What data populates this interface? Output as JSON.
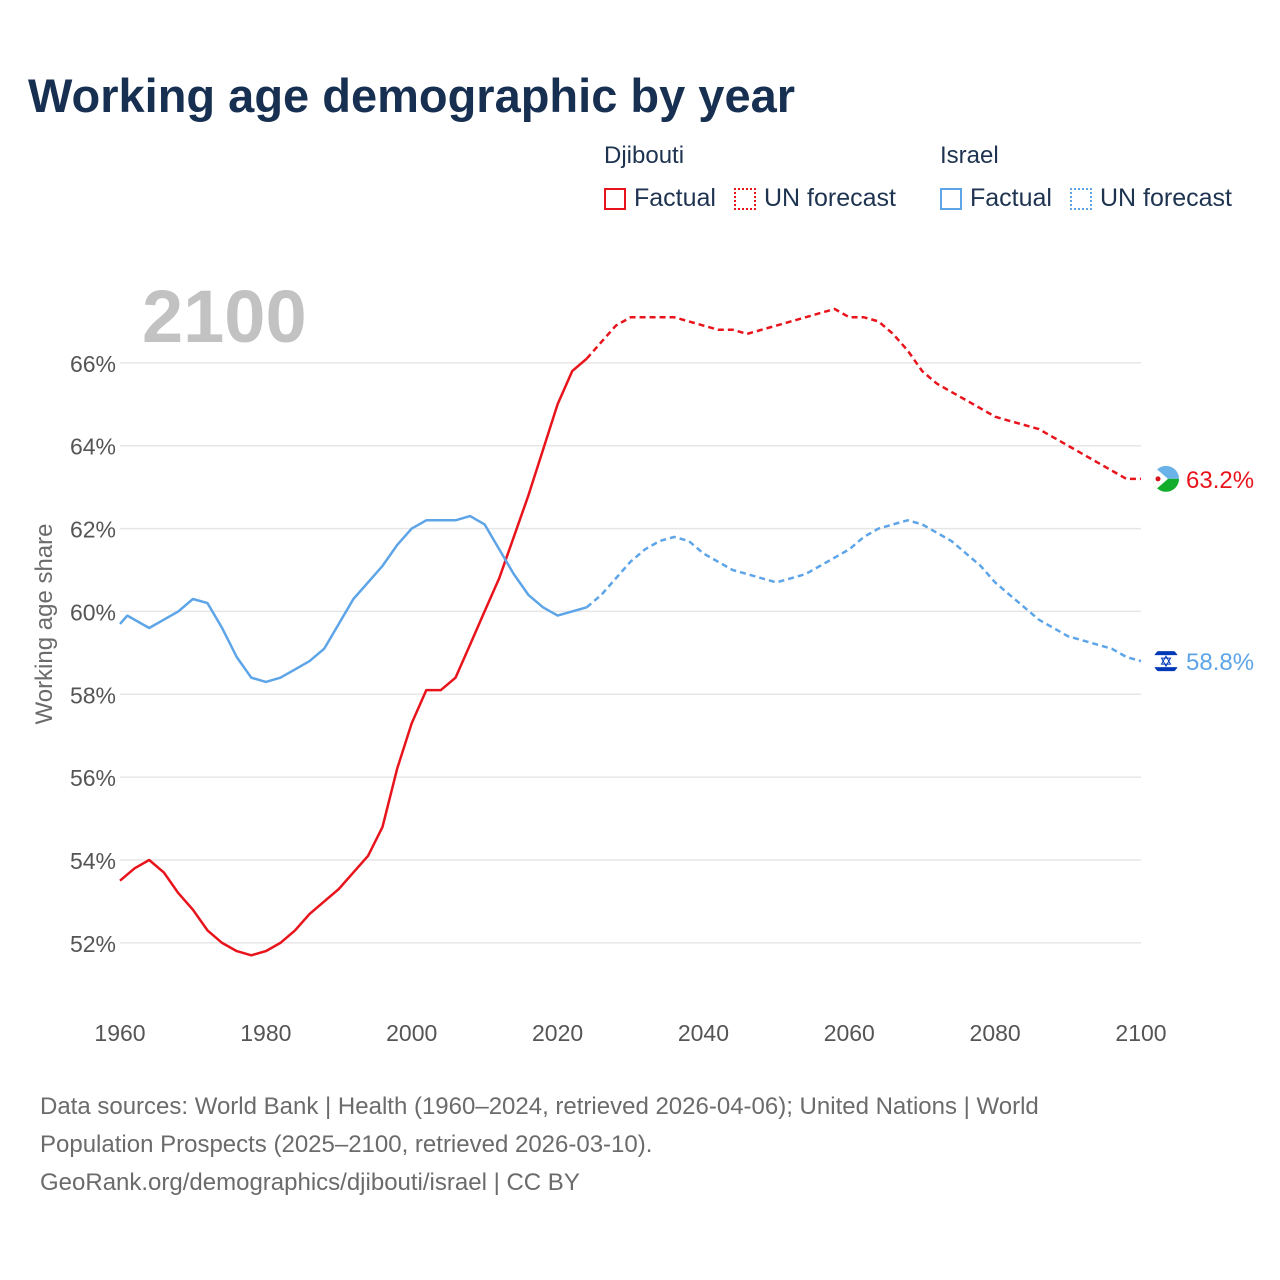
{
  "title": "Working age demographic by year",
  "legend": {
    "groups": [
      {
        "name": "Djibouti",
        "factual": "Factual",
        "forecast": "UN forecast",
        "color": "#e8141c"
      },
      {
        "name": "Israel",
        "factual": "Factual",
        "forecast": "UN forecast",
        "color": "#5ea5e8"
      }
    ]
  },
  "year_watermark": "2100",
  "footer": {
    "line1": "Data sources: World Bank | Health (1960–2024, retrieved 2026-04-06); United Nations | World",
    "line2": "Population Prospects (2025–2100, retrieved 2026-03-10).",
    "line3": "GeoRank.org/demographics/djibouti/israel | CC BY"
  },
  "chart_data": {
    "type": "line",
    "title": "Working age demographic by year",
    "xlabel": "",
    "ylabel": "Working age share",
    "xlim": [
      1960,
      2100
    ],
    "ylim": [
      50.5,
      68
    ],
    "x_ticks": [
      1960,
      1980,
      2000,
      2020,
      2040,
      2060,
      2080,
      2100
    ],
    "x_tick_labels": [
      "1960",
      "1980",
      "2000",
      "2020",
      "2040",
      "2060",
      "2080",
      "2100"
    ],
    "y_ticks": [
      52,
      54,
      56,
      58,
      60,
      62,
      64,
      66
    ],
    "y_tick_labels": [
      "52%",
      "54%",
      "56%",
      "58%",
      "60%",
      "62%",
      "64%",
      "66%"
    ],
    "factual_end_year": 2024,
    "series": [
      {
        "name": "Djibouti",
        "color": "#e8141c",
        "end_label": "63.2%",
        "end_icon": "djibouti-flag-icon",
        "x": [
          1960,
          1962,
          1964,
          1966,
          1968,
          1970,
          1972,
          1974,
          1976,
          1978,
          1980,
          1982,
          1984,
          1986,
          1988,
          1990,
          1992,
          1994,
          1996,
          1998,
          2000,
          2002,
          2004,
          2006,
          2008,
          2010,
          2012,
          2014,
          2016,
          2018,
          2020,
          2022,
          2024,
          2026,
          2028,
          2030,
          2032,
          2034,
          2036,
          2038,
          2040,
          2042,
          2044,
          2046,
          2048,
          2050,
          2052,
          2054,
          2056,
          2058,
          2060,
          2062,
          2064,
          2066,
          2068,
          2070,
          2072,
          2074,
          2076,
          2078,
          2080,
          2082,
          2084,
          2086,
          2088,
          2090,
          2092,
          2094,
          2096,
          2098,
          2100
        ],
        "values": [
          53.5,
          53.8,
          54.0,
          53.7,
          53.2,
          52.8,
          52.3,
          52.0,
          51.8,
          51.7,
          51.8,
          52.0,
          52.3,
          52.7,
          53.0,
          53.3,
          53.7,
          54.1,
          54.8,
          56.2,
          57.3,
          58.1,
          58.1,
          58.4,
          59.2,
          60.0,
          60.8,
          61.8,
          62.8,
          63.9,
          65.0,
          65.8,
          66.1,
          66.5,
          66.9,
          67.1,
          67.1,
          67.1,
          67.1,
          67.0,
          66.9,
          66.8,
          66.8,
          66.7,
          66.8,
          66.9,
          67.0,
          67.1,
          67.2,
          67.3,
          67.1,
          67.1,
          67.0,
          66.7,
          66.3,
          65.8,
          65.5,
          65.3,
          65.1,
          64.9,
          64.7,
          64.6,
          64.5,
          64.4,
          64.2,
          64.0,
          63.8,
          63.6,
          63.4,
          63.2,
          63.2
        ]
      },
      {
        "name": "Israel",
        "color": "#5ea5e8",
        "end_label": "58.8%",
        "end_icon": "israel-flag-icon",
        "x": [
          1960,
          1961,
          1964,
          1966,
          1968,
          1970,
          1972,
          1974,
          1976,
          1978,
          1980,
          1982,
          1984,
          1986,
          1988,
          1990,
          1992,
          1994,
          1996,
          1998,
          2000,
          2002,
          2004,
          2006,
          2008,
          2010,
          2012,
          2014,
          2016,
          2018,
          2020,
          2022,
          2024,
          2026,
          2028,
          2030,
          2032,
          2034,
          2036,
          2038,
          2040,
          2042,
          2044,
          2046,
          2048,
          2050,
          2052,
          2054,
          2056,
          2058,
          2060,
          2062,
          2064,
          2066,
          2068,
          2070,
          2072,
          2074,
          2076,
          2078,
          2080,
          2082,
          2084,
          2086,
          2088,
          2090,
          2092,
          2094,
          2096,
          2098,
          2100
        ],
        "values": [
          59.7,
          59.9,
          59.6,
          59.8,
          60.0,
          60.3,
          60.2,
          59.6,
          58.9,
          58.4,
          58.3,
          58.4,
          58.6,
          58.8,
          59.1,
          59.7,
          60.3,
          60.7,
          61.1,
          61.6,
          62.0,
          62.2,
          62.2,
          62.2,
          62.3,
          62.1,
          61.5,
          60.9,
          60.4,
          60.1,
          59.9,
          60.0,
          60.1,
          60.4,
          60.8,
          61.2,
          61.5,
          61.7,
          61.8,
          61.7,
          61.4,
          61.2,
          61.0,
          60.9,
          60.8,
          60.7,
          60.8,
          60.9,
          61.1,
          61.3,
          61.5,
          61.8,
          62.0,
          62.1,
          62.2,
          62.1,
          61.9,
          61.7,
          61.4,
          61.1,
          60.7,
          60.4,
          60.1,
          59.8,
          59.6,
          59.4,
          59.3,
          59.2,
          59.1,
          58.9,
          58.8
        ]
      }
    ]
  }
}
